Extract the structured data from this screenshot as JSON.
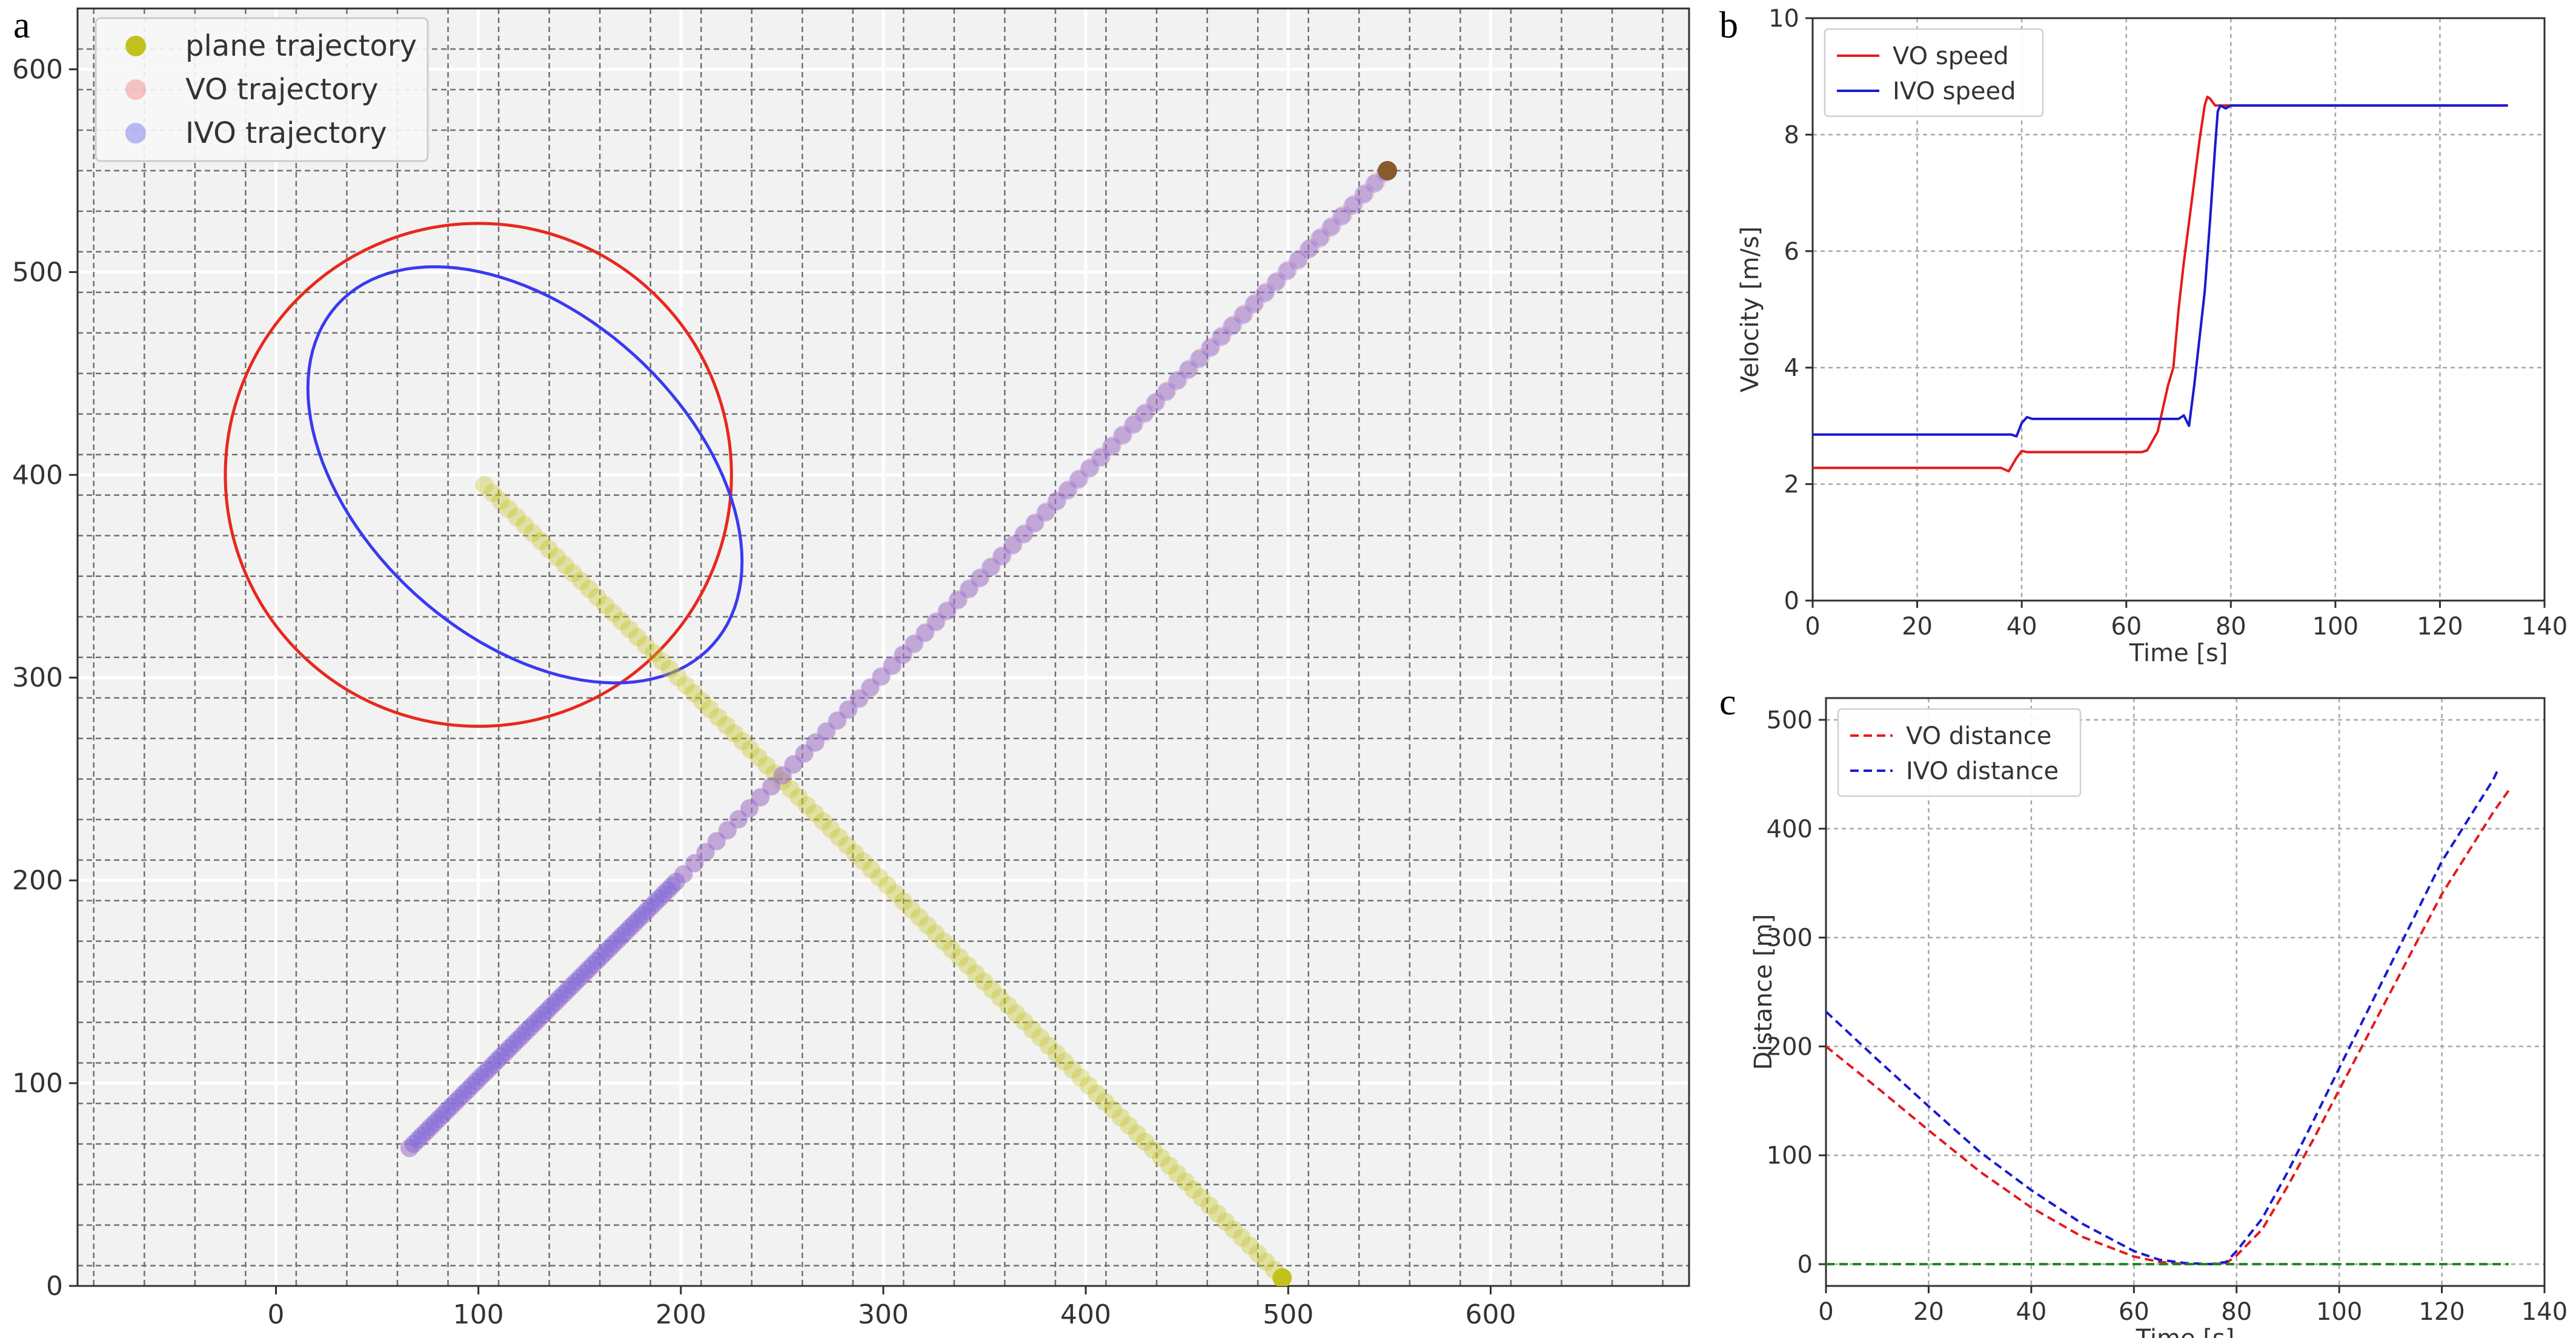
{
  "panel_labels": {
    "a": "a",
    "b": "b",
    "c": "c"
  },
  "chart_data": [
    {
      "panel": "a",
      "type": "scatter",
      "title": "",
      "xlabel": "",
      "ylabel": "",
      "xlim": [
        -98,
        698
      ],
      "ylim": [
        0,
        630
      ],
      "xticks": [
        0,
        100,
        200,
        300,
        400,
        500,
        600
      ],
      "yticks": [
        0,
        100,
        200,
        300,
        400,
        500,
        600
      ],
      "grid": true,
      "legend_position": "top-left",
      "colors": {
        "background": "#f2f2f2",
        "plane": "#c2c21e",
        "vo": "#f08080",
        "ivo": "#6a6af0",
        "vo_circle": "#e8281e",
        "ivo_ellipse": "#3a3af0"
      },
      "series": [
        {
          "name": "plane trajectory",
          "start": [
            103,
            395
          ],
          "end": [
            497,
            4
          ]
        },
        {
          "name": "VO trajectory",
          "start": [
            66,
            68
          ],
          "end": [
            549,
            550
          ]
        },
        {
          "name": "IVO trajectory",
          "start": [
            66,
            68
          ],
          "end": [
            548,
            549
          ]
        }
      ],
      "vo_circle": {
        "center": [
          100,
          400
        ],
        "radius_x": 125,
        "radius_y": 124
      },
      "ivo_ellipse": {
        "center": [
          123,
          400
        ],
        "semi_major": 125,
        "semi_minor": 80,
        "rotation_deg": -42
      }
    },
    {
      "panel": "b",
      "type": "line",
      "title": "",
      "xlabel": "Time [s]",
      "ylabel": "Velocity [m/s]",
      "xlim": [
        0,
        140
      ],
      "ylim": [
        0,
        10
      ],
      "xticks": [
        0,
        20,
        40,
        60,
        80,
        100,
        120,
        140
      ],
      "yticks": [
        0,
        2,
        4,
        6,
        8,
        10
      ],
      "grid": true,
      "legend_position": "top-left",
      "series": [
        {
          "name": "VO speed",
          "color": "#e41a1c",
          "x": [
            0,
            36,
            37.5,
            39,
            40,
            41,
            50,
            60,
            63,
            64,
            66,
            67,
            68,
            69,
            70,
            71,
            72,
            73,
            74,
            75,
            75.5,
            76,
            77,
            78,
            80,
            100,
            120,
            133
          ],
          "y": [
            2.28,
            2.28,
            2.22,
            2.45,
            2.57,
            2.55,
            2.55,
            2.55,
            2.55,
            2.58,
            2.9,
            3.3,
            3.7,
            4.0,
            5.0,
            5.8,
            6.5,
            7.2,
            7.9,
            8.5,
            8.65,
            8.62,
            8.5,
            8.5,
            8.5,
            8.5,
            8.5,
            8.5
          ]
        },
        {
          "name": "IVO speed",
          "color": "#1a1ad0",
          "x": [
            0,
            38,
            39,
            40,
            41,
            42,
            50,
            60,
            70,
            71,
            72,
            73,
            74,
            75,
            76,
            77,
            77.5,
            78,
            79,
            80,
            100,
            120,
            133
          ],
          "y": [
            2.85,
            2.85,
            2.82,
            3.05,
            3.15,
            3.12,
            3.12,
            3.12,
            3.12,
            3.18,
            3.0,
            3.7,
            4.5,
            5.3,
            6.5,
            7.8,
            8.4,
            8.5,
            8.45,
            8.5,
            8.5,
            8.5,
            8.5
          ]
        }
      ]
    },
    {
      "panel": "c",
      "type": "line",
      "title": "",
      "xlabel": "Time [s]",
      "ylabel": "Distance [m]",
      "xlim": [
        0,
        140
      ],
      "ylim": [
        -20,
        520
      ],
      "xticks": [
        0,
        20,
        40,
        60,
        80,
        100,
        120,
        140
      ],
      "yticks": [
        0,
        100,
        200,
        300,
        400,
        500
      ],
      "grid": true,
      "legend_position": "top-left",
      "series": [
        {
          "name": "VO distance",
          "color": "#e41a1c",
          "dashed": true,
          "x": [
            0,
            10,
            20,
            30,
            40,
            50,
            60,
            65,
            70,
            75,
            78,
            80,
            85,
            90,
            95,
            100,
            110,
            120,
            130,
            133
          ],
          "y": [
            200,
            162,
            123,
            85,
            52,
            25,
            7,
            2,
            0,
            0,
            1,
            8,
            32,
            72,
            115,
            160,
            250,
            340,
            415,
            435
          ]
        },
        {
          "name": "IVO distance",
          "color": "#1a1ad0",
          "dashed": true,
          "x": [
            0,
            10,
            20,
            30,
            40,
            50,
            60,
            65,
            70,
            75,
            78,
            80,
            85,
            90,
            95,
            100,
            110,
            120,
            130,
            131
          ],
          "y": [
            232,
            188,
            145,
            103,
            68,
            37,
            12,
            4,
            1,
            0,
            2,
            12,
            42,
            85,
            132,
            180,
            275,
            370,
            445,
            455
          ]
        },
        {
          "name": "",
          "color": "#1a8a1a",
          "dashed": true,
          "x": [
            0,
            133
          ],
          "y": [
            0,
            0
          ]
        }
      ]
    }
  ]
}
